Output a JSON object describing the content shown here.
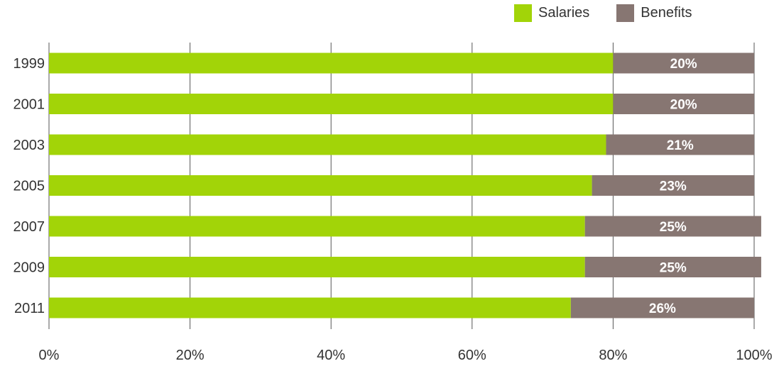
{
  "chart_data": {
    "type": "bar",
    "orientation": "horizontal",
    "stacked": true,
    "categories": [
      "1999",
      "2001",
      "2003",
      "2005",
      "2007",
      "2009",
      "2011"
    ],
    "series": [
      {
        "name": "Salaries",
        "values": [
          80,
          80,
          79,
          77,
          76,
          76,
          74
        ],
        "color": "#a2d408"
      },
      {
        "name": "Benefits",
        "values": [
          20,
          20,
          21,
          23,
          25,
          25,
          26
        ],
        "color": "#877672"
      }
    ],
    "data_labels": [
      "20%",
      "20%",
      "21%",
      "23%",
      "25%",
      "25%",
      "26%"
    ],
    "x_ticks": [
      "0%",
      "20%",
      "40%",
      "60%",
      "80%",
      "100%"
    ],
    "xlim": [
      0,
      100
    ],
    "grid": true,
    "legend_position": "top-right"
  }
}
